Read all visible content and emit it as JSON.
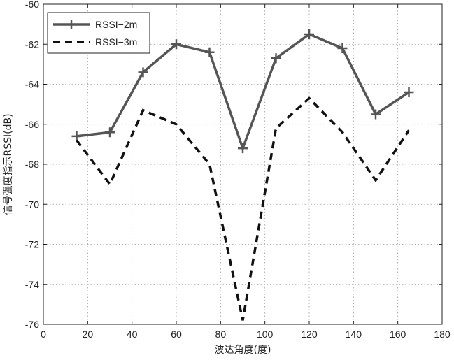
{
  "chart_data": {
    "type": "line",
    "title": "",
    "xlabel": "波达角度(度)",
    "ylabel": "信号强度指示RSSI(dB)",
    "xlim": [
      0,
      180
    ],
    "ylim": [
      -76,
      -60
    ],
    "xticks": [
      0,
      20,
      40,
      60,
      80,
      100,
      120,
      140,
      160,
      180
    ],
    "yticks": [
      -76,
      -74,
      -72,
      -70,
      -68,
      -66,
      -64,
      -62,
      -60
    ],
    "grid": true,
    "legend_position": "top-left",
    "x": [
      15,
      30,
      45,
      60,
      75,
      90,
      105,
      120,
      135,
      150,
      165
    ],
    "series": [
      {
        "name": "RSSI−2m",
        "style": "solid-plus-markers",
        "color": "#555555",
        "values": [
          -66.6,
          -66.4,
          -63.4,
          -62.0,
          -62.4,
          -67.2,
          -62.7,
          -61.5,
          -62.2,
          -65.5,
          -64.4
        ]
      },
      {
        "name": "RSSI−3m",
        "style": "dashed",
        "color": "#111111",
        "values": [
          -66.8,
          -69.0,
          -65.3,
          -66.0,
          -68.0,
          -75.8,
          -66.2,
          -64.7,
          -66.4,
          -68.8,
          -66.3
        ]
      }
    ]
  }
}
